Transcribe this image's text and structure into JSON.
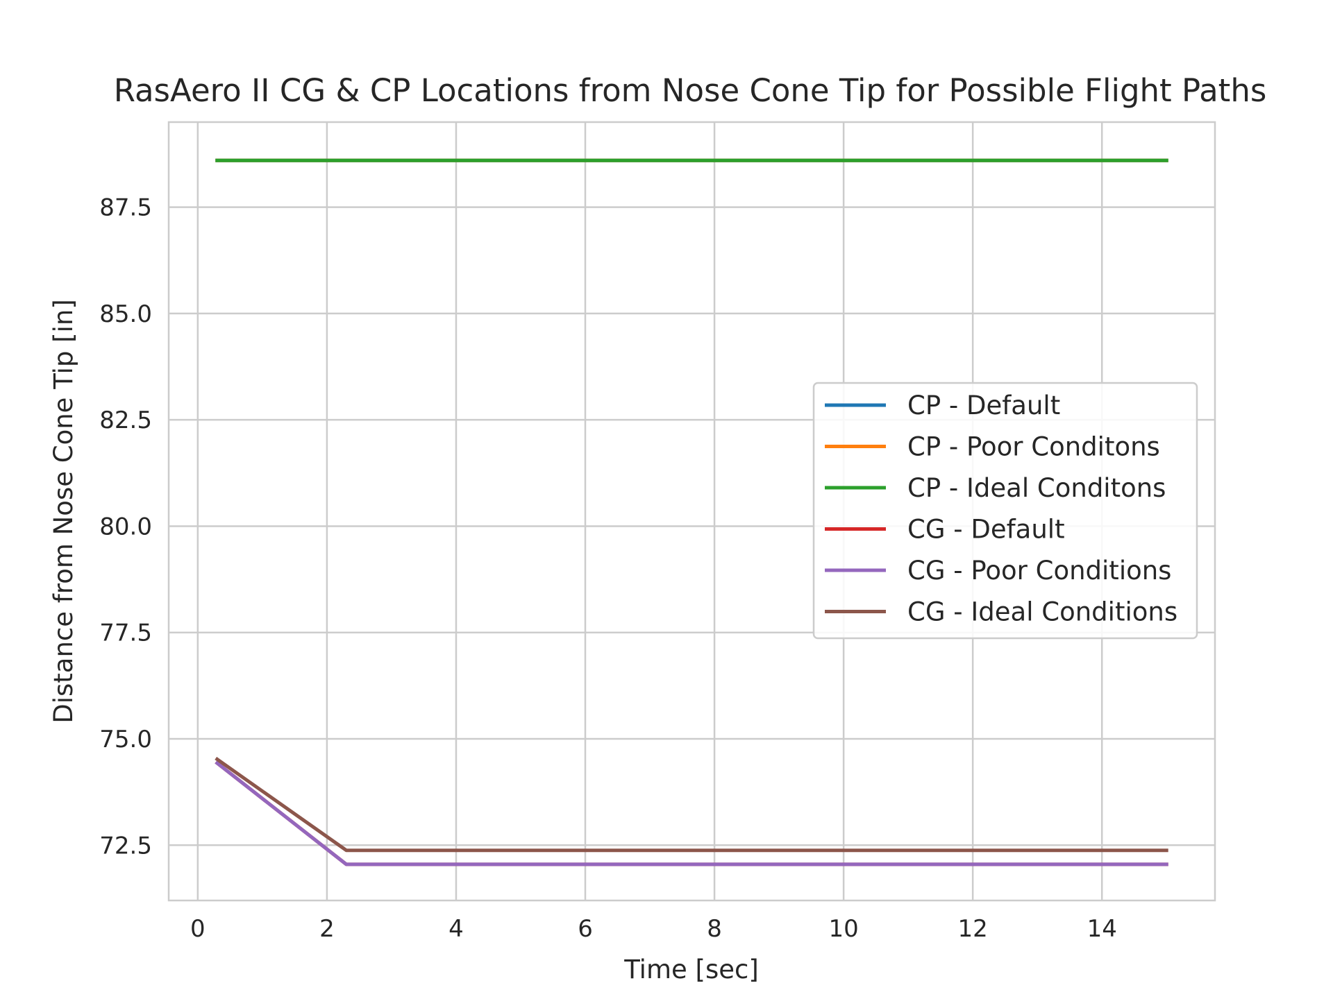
{
  "chart_data": {
    "type": "line",
    "title": "RasAero II CG & CP Locations from Nose Cone Tip for Possible Flight Paths",
    "xlabel": "Time [sec]",
    "ylabel": "Distance from Nose Cone Tip [in]",
    "xlim": [
      -0.45,
      15.75
    ],
    "ylim": [
      71.2,
      89.5
    ],
    "xticks": [
      0,
      2,
      4,
      6,
      8,
      10,
      12,
      14
    ],
    "xtick_labels": [
      "0",
      "2",
      "4",
      "6",
      "8",
      "10",
      "12",
      "14"
    ],
    "yticks": [
      72.5,
      75.0,
      77.5,
      80.0,
      82.5,
      85.0,
      87.5
    ],
    "ytick_labels": [
      "72.5",
      "75.0",
      "77.5",
      "80.0",
      "82.5",
      "85.0",
      "87.5"
    ],
    "grid": true,
    "legend_position": "center-right",
    "series": [
      {
        "name": "CP - Default",
        "color": "#1f77b4",
        "x": [
          0.3,
          15.0
        ],
        "y": [
          88.6,
          88.6
        ]
      },
      {
        "name": "CP - Poor Conditons",
        "color": "#ff7f0e",
        "x": [
          0.3,
          15.0
        ],
        "y": [
          88.6,
          88.6
        ]
      },
      {
        "name": "CP - Ideal Conditons",
        "color": "#2ca02c",
        "x": [
          0.3,
          15.0
        ],
        "y": [
          88.6,
          88.6
        ]
      },
      {
        "name": "CG - Default",
        "color": "#d62728",
        "x": [
          0.3,
          2.3,
          15.0
        ],
        "y": [
          74.43,
          72.05,
          72.05
        ]
      },
      {
        "name": "CG - Poor Conditions",
        "color": "#9467bd",
        "x": [
          0.3,
          2.3,
          15.0
        ],
        "y": [
          74.43,
          72.05,
          72.05
        ]
      },
      {
        "name": "CG - Ideal Conditions",
        "color": "#8c564b",
        "x": [
          0.3,
          2.3,
          15.0
        ],
        "y": [
          74.52,
          72.38,
          72.38
        ]
      }
    ]
  }
}
